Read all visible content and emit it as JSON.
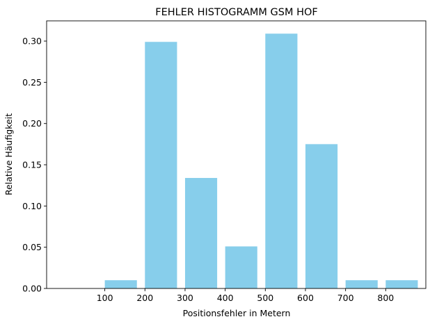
{
  "chart_data": {
    "type": "bar",
    "title": "FEHLER HISTOGRAMM GSM HOF",
    "xlabel": "Positionsfehler in Metern",
    "ylabel": "Relative Häufigkeit",
    "bar_color": "#87CEEB",
    "bars": [
      {
        "x": 100,
        "width": 80,
        "value": 0.01
      },
      {
        "x": 200,
        "width": 80,
        "value": 0.299
      },
      {
        "x": 300,
        "width": 80,
        "value": 0.134
      },
      {
        "x": 400,
        "width": 80,
        "value": 0.051
      },
      {
        "x": 500,
        "width": 80,
        "value": 0.309
      },
      {
        "x": 600,
        "width": 80,
        "value": 0.175
      },
      {
        "x": 700,
        "width": 80,
        "value": 0.01
      },
      {
        "x": 800,
        "width": 80,
        "value": 0.01
      }
    ],
    "xticks": [
      {
        "value": 100,
        "label": "100"
      },
      {
        "value": 200,
        "label": "200"
      },
      {
        "value": 300,
        "label": "300"
      },
      {
        "value": 400,
        "label": "400"
      },
      {
        "value": 500,
        "label": "500"
      },
      {
        "value": 600,
        "label": "600"
      },
      {
        "value": 700,
        "label": "700"
      },
      {
        "value": 800,
        "label": "800"
      }
    ],
    "yticks": [
      {
        "value": 0.0,
        "label": "0.00"
      },
      {
        "value": 0.05,
        "label": "0.05"
      },
      {
        "value": 0.1,
        "label": "0.10"
      },
      {
        "value": 0.15,
        "label": "0.15"
      },
      {
        "value": 0.2,
        "label": "0.20"
      },
      {
        "value": 0.25,
        "label": "0.25"
      },
      {
        "value": 0.3,
        "label": "0.30"
      }
    ],
    "xlim": [
      -45,
      900
    ],
    "ylim": [
      0,
      0.3245
    ],
    "grid": false,
    "legend": "none"
  }
}
